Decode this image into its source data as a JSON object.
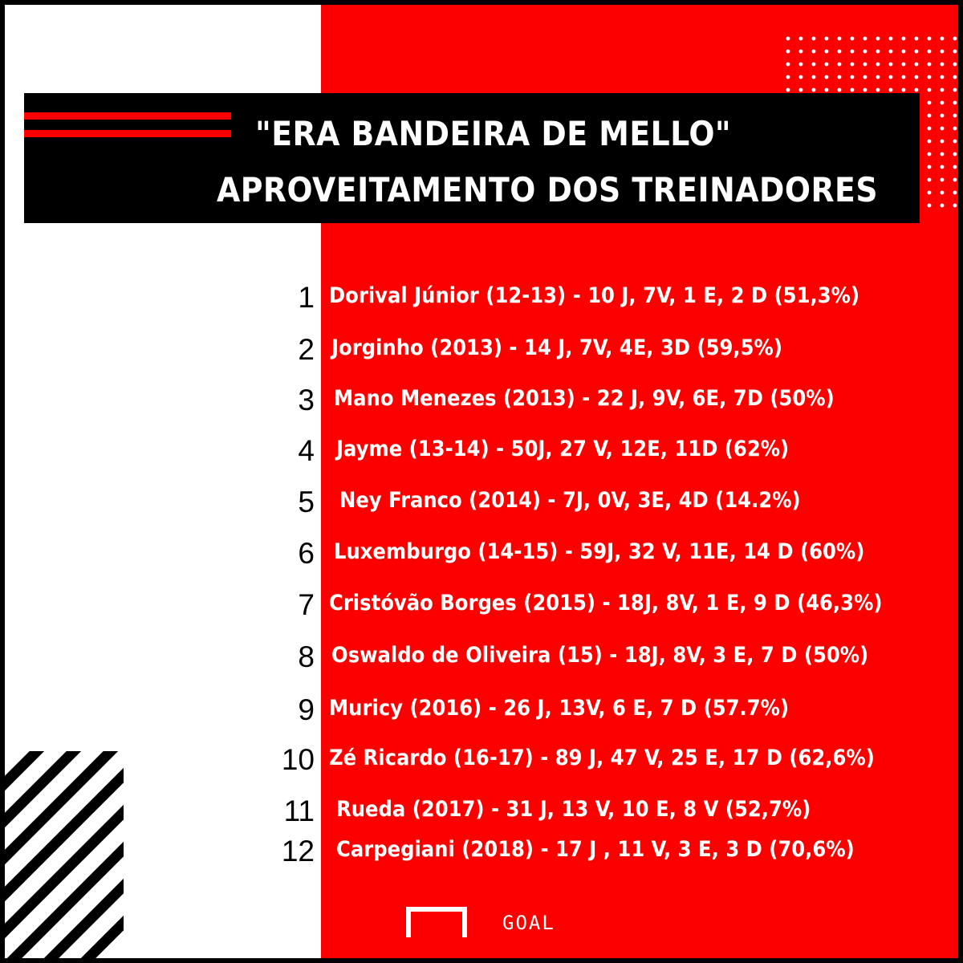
{
  "title": {
    "line1": "\"ERA BANDEIRA DE MELLO\"",
    "line2": "APROVEITAMENTO DOS TREINADORES"
  },
  "coaches": [
    {
      "rank": "1",
      "text": "Dorival Júnior (12-13) - 10 J, 7V, 1 E, 2 D (51,3%)"
    },
    {
      "rank": "2",
      "text": "Jorginho (2013) - 14 J, 7V, 4E, 3D  (59,5%)"
    },
    {
      "rank": "3",
      "text": "Mano Menezes (2013) - 22 J, 9V, 6E, 7D (50%)"
    },
    {
      "rank": "4",
      "text": "Jayme (13-14) - 50J, 27 V, 12E, 11D (62%)"
    },
    {
      "rank": "5",
      "text": "Ney Franco (2014) - 7J, 0V, 3E, 4D (14.2%)"
    },
    {
      "rank": "6",
      "text": "Luxemburgo (14-15) - 59J, 32 V, 11E, 14 D (60%)"
    },
    {
      "rank": "7",
      "text": "Cristóvão Borges (2015) - 18J, 8V, 1 E, 9 D (46,3%)"
    },
    {
      "rank": "8",
      "text": "Oswaldo de Oliveira (15) - 18J, 8V, 3 E, 7 D (50%)"
    },
    {
      "rank": "9",
      "text": "Muricy (2016) - 26 J, 13V, 6 E, 7 D (57.7%)"
    },
    {
      "rank": "10",
      "text": "Zé Ricardo (16-17) - 89 J, 47 V, 25 E, 17 D (62,6%)"
    },
    {
      "rank": "11",
      "text": "Rueda (2017) - 31 J, 13 V, 10 E, 8 V (52,7%)"
    },
    {
      "rank": "12",
      "text": "Carpegiani (2018) - 17 J , 11 V, 3 E, 3 D (70,6%)"
    }
  ],
  "logo": {
    "text": "GOAL"
  },
  "colors": {
    "red": "#fc0000",
    "black": "#000000",
    "white": "#ffffff"
  }
}
